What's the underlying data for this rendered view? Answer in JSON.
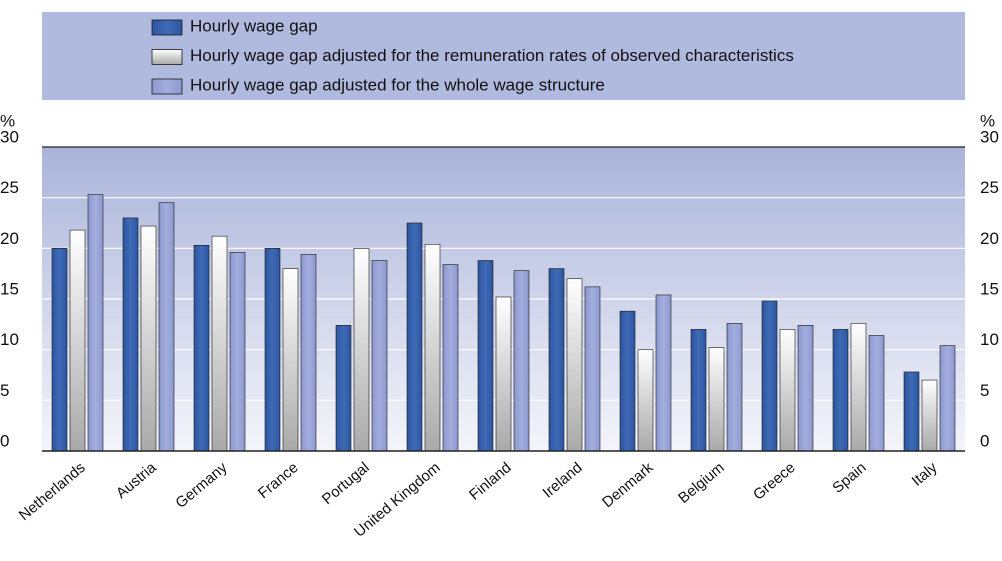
{
  "chart_data": {
    "type": "bar",
    "y_label": "%",
    "categories": [
      "Netherlands",
      "Austria",
      "Germany",
      "France",
      "Portugal",
      "United Kingdom",
      "Finland",
      "Ireland",
      "Denmark",
      "Belgium",
      "Greece",
      "Spain",
      "Italy"
    ],
    "series": [
      {
        "name": "Hourly wage gap",
        "color": "#3a64ae",
        "values": [
          20.0,
          23.0,
          20.3,
          20.0,
          12.4,
          22.5,
          18.8,
          18.0,
          13.8,
          12.0,
          14.8,
          12.0,
          7.8
        ]
      },
      {
        "name": "Hourly wage gap adjusted for the remuneration rates of observed characteristics",
        "color": "#e4e4e4",
        "values": [
          21.8,
          22.2,
          21.2,
          18.0,
          20.0,
          20.4,
          15.2,
          17.0,
          10.0,
          10.2,
          12.0,
          12.6,
          7.0
        ]
      },
      {
        "name": "Hourly wage gap adjusted for the whole wage structure",
        "color": "#98a4d6",
        "values": [
          25.3,
          24.5,
          19.6,
          19.4,
          18.8,
          18.4,
          17.8,
          16.2,
          15.4,
          12.6,
          12.4,
          11.4,
          10.4
        ]
      }
    ],
    "ylim": [
      0,
      30
    ],
    "yticks": [
      0,
      5,
      10,
      15,
      20,
      25,
      30
    ],
    "grid": true
  }
}
